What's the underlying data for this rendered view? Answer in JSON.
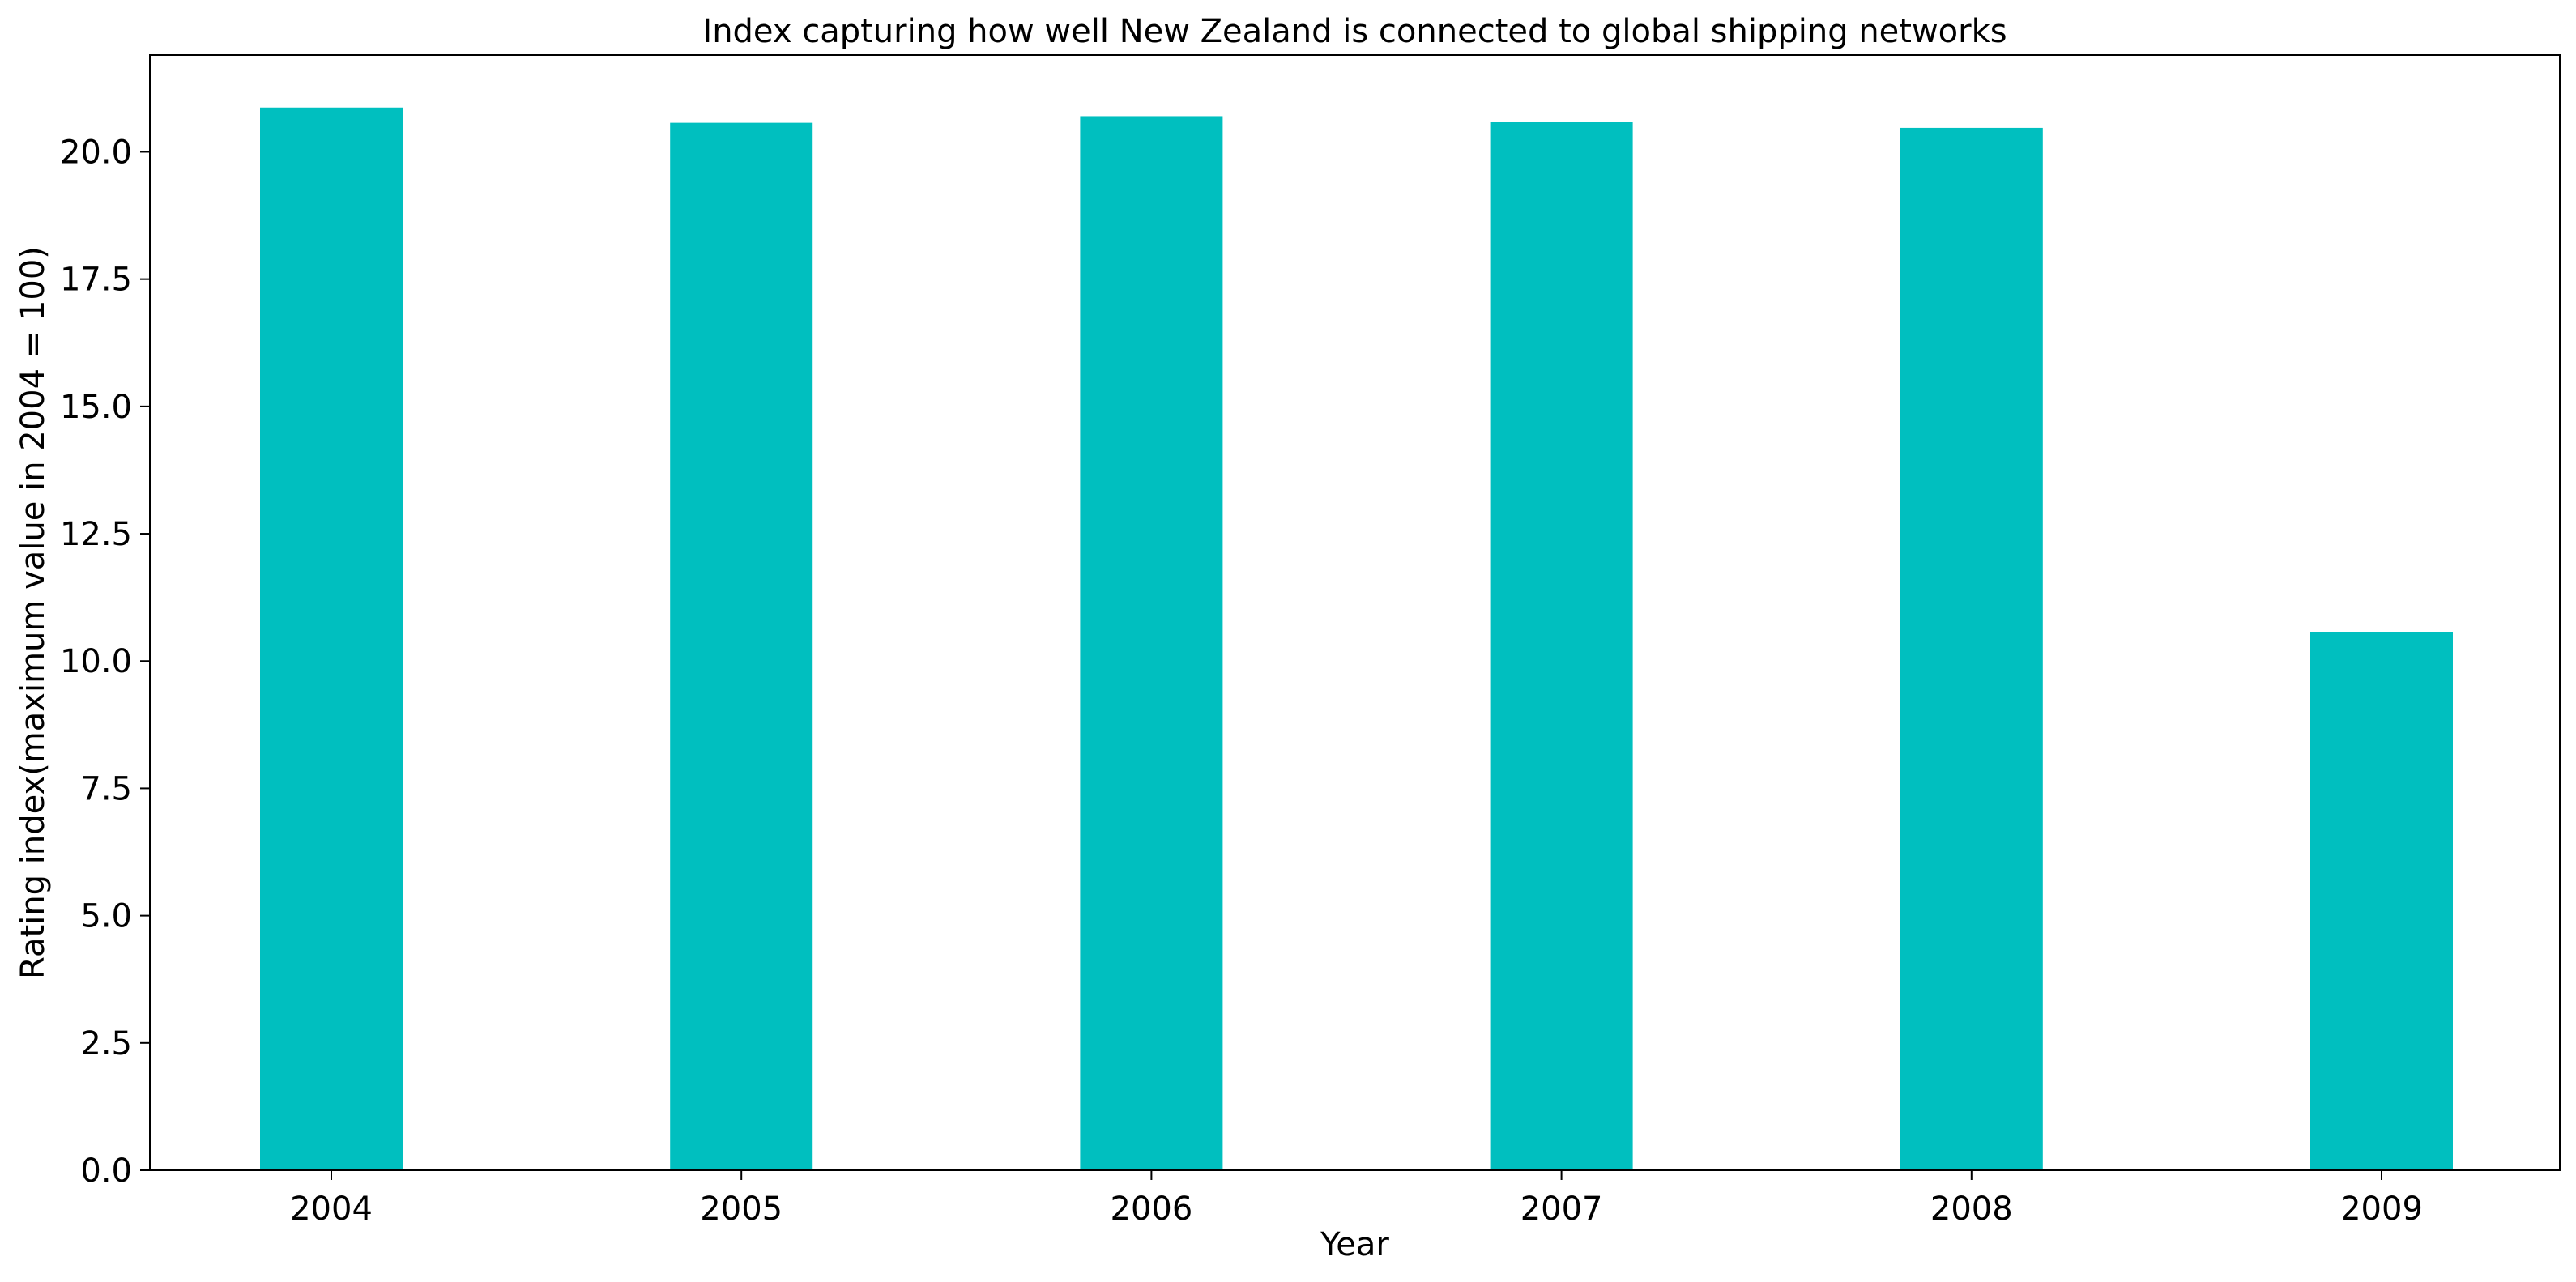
{
  "chart_data": {
    "type": "bar",
    "title": "Index capturing how well New Zealand is connected to global shipping networks",
    "xlabel": "Year",
    "ylabel": "Rating index(maximum value in 2004 = 100)",
    "categories": [
      "2004",
      "2005",
      "2006",
      "2007",
      "2008",
      "2009"
    ],
    "values": [
      20.87,
      20.57,
      20.7,
      20.58,
      20.47,
      10.57
    ],
    "ylim": [
      0,
      21.9
    ],
    "yticks": [
      "0.0",
      "2.5",
      "5.0",
      "7.5",
      "10.0",
      "12.5",
      "15.0",
      "17.5",
      "20.0"
    ],
    "bar_color": "#00BFBF",
    "grid": false
  }
}
